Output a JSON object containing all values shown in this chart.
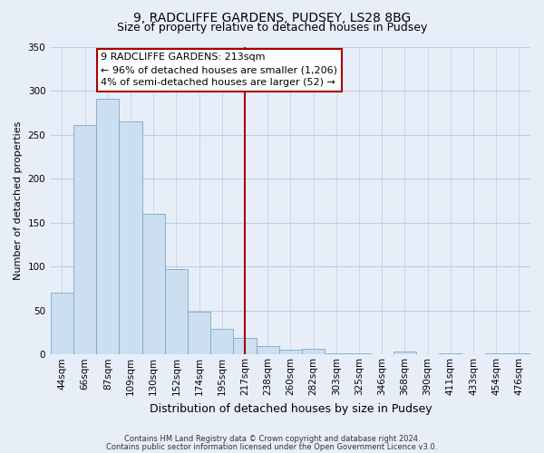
{
  "title": "9, RADCLIFFE GARDENS, PUDSEY, LS28 8BG",
  "subtitle": "Size of property relative to detached houses in Pudsey",
  "xlabel": "Distribution of detached houses by size in Pudsey",
  "ylabel": "Number of detached properties",
  "bar_labels": [
    "44sqm",
    "66sqm",
    "87sqm",
    "109sqm",
    "130sqm",
    "152sqm",
    "174sqm",
    "195sqm",
    "217sqm",
    "238sqm",
    "260sqm",
    "282sqm",
    "303sqm",
    "325sqm",
    "346sqm",
    "368sqm",
    "390sqm",
    "411sqm",
    "433sqm",
    "454sqm",
    "476sqm"
  ],
  "bar_values": [
    70,
    261,
    291,
    265,
    160,
    97,
    49,
    29,
    19,
    10,
    5,
    6,
    1,
    1,
    0,
    3,
    0,
    1,
    0,
    1,
    1
  ],
  "bar_color": "#ccdff0",
  "bar_edge_color": "#7aa8c8",
  "vline_x_index": 8,
  "vline_color": "#aa0000",
  "annotation_title": "9 RADCLIFFE GARDENS: 213sqm",
  "annotation_line1": "← 96% of detached houses are smaller (1,206)",
  "annotation_line2": "4% of semi-detached houses are larger (52) →",
  "annotation_box_facecolor": "#ffffff",
  "annotation_box_edgecolor": "#aa0000",
  "ylim": [
    0,
    350
  ],
  "yticks": [
    0,
    50,
    100,
    150,
    200,
    250,
    300,
    350
  ],
  "footer1": "Contains HM Land Registry data © Crown copyright and database right 2024.",
  "footer2": "Contains public sector information licensed under the Open Government Licence v3.0.",
  "background_color": "#e8eef8",
  "grid_color": "#c0cce0",
  "title_fontsize": 10,
  "subtitle_fontsize": 9,
  "ylabel_fontsize": 8,
  "xlabel_fontsize": 9,
  "tick_fontsize": 7.5,
  "footer_fontsize": 6,
  "annotation_fontsize": 8
}
